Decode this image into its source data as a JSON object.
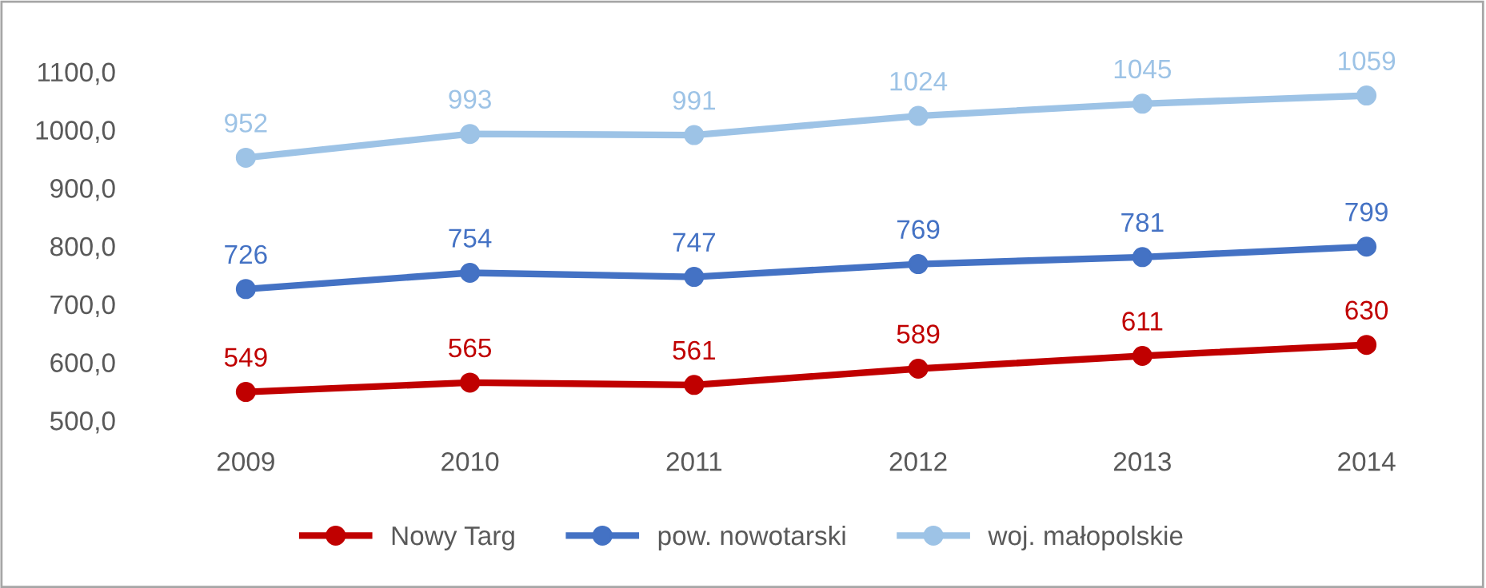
{
  "chart_data": {
    "type": "line",
    "categories": [
      "2009",
      "2010",
      "2011",
      "2012",
      "2013",
      "2014"
    ],
    "series": [
      {
        "name": "Nowy Targ",
        "color": "#c00000",
        "values": [
          549,
          565,
          561,
          589,
          611,
          630
        ]
      },
      {
        "name": "pow. nowotarski",
        "color": "#4472c4",
        "values": [
          726,
          754,
          747,
          769,
          781,
          799
        ]
      },
      {
        "name": "woj. małopolskie",
        "color": "#9dc3e6",
        "values": [
          952,
          993,
          991,
          1024,
          1045,
          1059
        ]
      }
    ],
    "ylim": [
      500,
      1100
    ],
    "yticks": [
      {
        "value": 500,
        "label": "500,0"
      },
      {
        "value": 600,
        "label": "600,0"
      },
      {
        "value": 700,
        "label": "700,0"
      },
      {
        "value": 800,
        "label": "800,0"
      },
      {
        "value": 900,
        "label": "900,0"
      },
      {
        "value": 1000,
        "label": "1000,0"
      },
      {
        "value": 1100,
        "label": "1100,0"
      }
    ],
    "data_labels": true,
    "marker": "circle",
    "line_style": "solid",
    "legend": "bottom",
    "grid": false
  }
}
